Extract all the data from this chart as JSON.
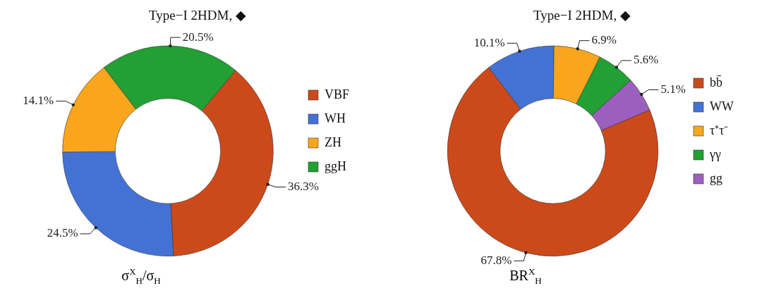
{
  "chart_data": [
    {
      "type": "donut",
      "title": "Type−I 2HDM, ◆",
      "xlabel": "σ$^{X}$$_{H}$/σ$_{H}$",
      "categories": [
        "VBF",
        "WH",
        "ZH",
        "ggH"
      ],
      "values": [
        36.3,
        24.5,
        14.1,
        20.5
      ],
      "value_labels": [
        "36.3%",
        "24.5%",
        "14.1%",
        "20.5%"
      ],
      "colors": [
        "#cc4a1a",
        "#4472d4",
        "#f9a61d",
        "#22a033"
      ],
      "legend": "right"
    },
    {
      "type": "donut",
      "title": "Type−I 2HDM, ◆",
      "xlabel": "BR$^{X}$$_{H}$",
      "categories": [
        "bb̄",
        "WW",
        "τ⁺τ⁻",
        "γγ",
        "gg"
      ],
      "values": [
        67.8,
        10.1,
        6.9,
        5.6,
        5.1
      ],
      "value_labels": [
        "67.8%",
        "10.1%",
        "6.9%",
        "5.6%",
        "5.1%"
      ],
      "colors": [
        "#cc4a1a",
        "#4472d4",
        "#f9a61d",
        "#22a033",
        "#9b5fc0"
      ],
      "legend": "right"
    }
  ]
}
